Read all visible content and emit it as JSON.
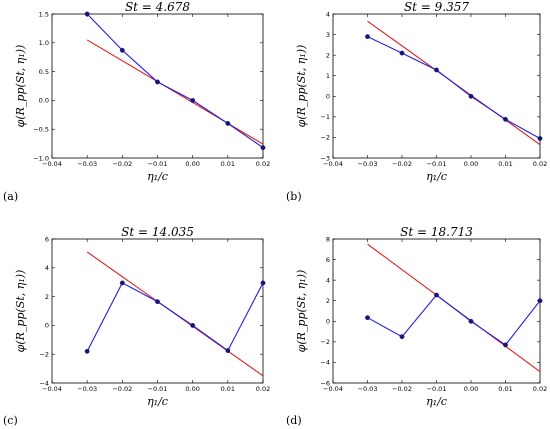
{
  "chart_data": [
    {
      "type": "line",
      "panel_label": "(a)",
      "title": "St = 4.678",
      "xlabel": "η₁/c",
      "ylabel": "φ(R_pp(St, η₁))",
      "xlim": [
        -0.04,
        0.02
      ],
      "ylim": [
        -1.0,
        1.5
      ],
      "xticks": [
        -0.04,
        -0.03,
        -0.02,
        -0.01,
        0.0,
        0.01,
        0.02
      ],
      "xtick_labels": [
        "−0.04",
        "−0.03",
        "−0.02",
        "−0.01",
        "0.00",
        "0.01",
        "0.02"
      ],
      "yticks": [
        -1.0,
        -0.5,
        0.0,
        0.5,
        1.0,
        1.5
      ],
      "ytick_labels": [
        "−1.0",
        "−0.5",
        "0.0",
        "0.5",
        "1.0",
        "1.5"
      ],
      "grid": false,
      "series": [
        {
          "color": "#1f1fe0",
          "style": "line-markers",
          "x": [
            -0.03,
            -0.02,
            -0.01,
            0.0,
            0.01,
            0.02
          ],
          "y": [
            1.5,
            0.87,
            0.32,
            0.0,
            -0.4,
            -0.82
          ]
        },
        {
          "color": "#e01f1f",
          "style": "line",
          "x": [
            -0.03,
            0.02
          ],
          "y": [
            1.05,
            -0.76
          ]
        }
      ]
    },
    {
      "type": "line",
      "panel_label": "(b)",
      "title": "St = 9.357",
      "xlabel": "η₁/c",
      "ylabel": "φ(R_pp(St, η₁))",
      "xlim": [
        -0.04,
        0.02
      ],
      "ylim": [
        -3,
        4
      ],
      "xticks": [
        -0.04,
        -0.03,
        -0.02,
        -0.01,
        0.0,
        0.01,
        0.02
      ],
      "xtick_labels": [
        "−0.04",
        "−0.03",
        "−0.02",
        "−0.01",
        "0.00",
        "0.01",
        "0.02"
      ],
      "yticks": [
        -3,
        -2,
        -1,
        0,
        1,
        2,
        3,
        4
      ],
      "ytick_labels": [
        "−3",
        "−2",
        "−1",
        "0",
        "1",
        "2",
        "3",
        "4"
      ],
      "grid": false,
      "series": [
        {
          "color": "#1f1fe0",
          "style": "line-markers",
          "x": [
            -0.03,
            -0.02,
            -0.01,
            0.0,
            0.01,
            0.02
          ],
          "y": [
            2.9,
            2.1,
            1.28,
            0.0,
            -1.12,
            -2.05
          ]
        },
        {
          "color": "#e01f1f",
          "style": "line",
          "x": [
            -0.03,
            0.02
          ],
          "y": [
            3.65,
            -2.35
          ]
        }
      ]
    },
    {
      "type": "line",
      "panel_label": "(c)",
      "title": "St = 14.035",
      "xlabel": "η₁/c",
      "ylabel": "φ(R_pp(St, η₁))",
      "xlim": [
        -0.04,
        0.02
      ],
      "ylim": [
        -4,
        6
      ],
      "xticks": [
        -0.04,
        -0.03,
        -0.02,
        -0.01,
        0.0,
        0.01,
        0.02
      ],
      "xtick_labels": [
        "−0.04",
        "−0.03",
        "−0.02",
        "−0.01",
        "0.00",
        "0.01",
        "0.02"
      ],
      "yticks": [
        -4,
        -2,
        0,
        2,
        4,
        6
      ],
      "ytick_labels": [
        "−4",
        "−2",
        "0",
        "2",
        "4",
        "6"
      ],
      "grid": false,
      "series": [
        {
          "color": "#1f1fe0",
          "style": "line-markers",
          "x": [
            -0.03,
            -0.02,
            -0.01,
            0.0,
            0.01,
            0.02
          ],
          "y": [
            -1.8,
            2.95,
            1.65,
            0.0,
            -1.75,
            2.95
          ]
        },
        {
          "color": "#e01f1f",
          "style": "line",
          "x": [
            -0.03,
            0.02
          ],
          "y": [
            5.1,
            -3.5
          ]
        }
      ]
    },
    {
      "type": "line",
      "panel_label": "(d)",
      "title": "St = 18.713",
      "xlabel": "η₁/c",
      "ylabel": "φ(R_pp(St, η₁))",
      "xlim": [
        -0.04,
        0.02
      ],
      "ylim": [
        -6,
        8
      ],
      "xticks": [
        -0.04,
        -0.03,
        -0.02,
        -0.01,
        0.0,
        0.01,
        0.02
      ],
      "xtick_labels": [
        "−0.04",
        "−0.03",
        "−0.02",
        "−0.01",
        "0.00",
        "0.01",
        "0.02"
      ],
      "yticks": [
        -6,
        -4,
        -2,
        0,
        2,
        4,
        6,
        8
      ],
      "ytick_labels": [
        "−6",
        "−4",
        "−2",
        "0",
        "2",
        "4",
        "6",
        "8"
      ],
      "grid": false,
      "series": [
        {
          "color": "#1f1fe0",
          "style": "line-markers",
          "x": [
            -0.03,
            -0.02,
            -0.01,
            0.0,
            0.01,
            0.02
          ],
          "y": [
            0.35,
            -1.5,
            2.55,
            0.0,
            -2.3,
            2.0
          ]
        },
        {
          "color": "#e01f1f",
          "style": "line",
          "x": [
            -0.03,
            0.02
          ],
          "y": [
            7.5,
            -4.9
          ]
        }
      ]
    }
  ]
}
